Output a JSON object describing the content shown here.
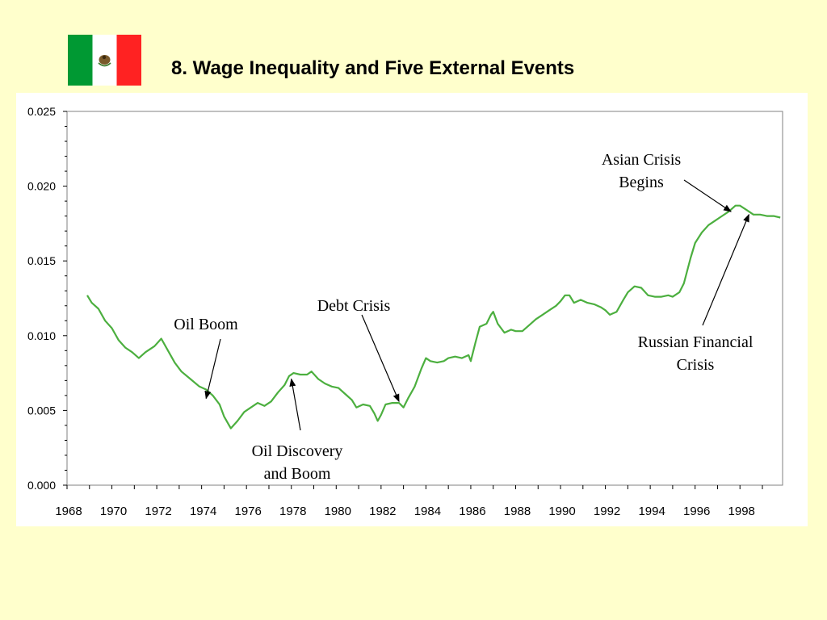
{
  "slide": {
    "title": "8.  Wage Inequality and Five External Events",
    "flag_colors": {
      "left": "#009933",
      "middle": "#FFFFFF",
      "right": "#FF2222",
      "emblem": "#7a5a2a"
    }
  },
  "chart_data": {
    "type": "line",
    "title": "",
    "xlabel": "",
    "ylabel": "",
    "xlim": [
      1968,
      1999.9
    ],
    "ylim": [
      0,
      0.025
    ],
    "y_ticks": [
      "0.000",
      "0.005",
      "0.010",
      "0.015",
      "0.020",
      "0.025"
    ],
    "y_tick_values": [
      0,
      0.005,
      0.01,
      0.015,
      0.02,
      0.025
    ],
    "x_ticks": [
      "1968",
      "1970",
      "1972",
      "1974",
      "1976",
      "1978",
      "1980",
      "1982",
      "1984",
      "1986",
      "1988",
      "1990",
      "1992",
      "1994",
      "1996",
      "1998"
    ],
    "x_tick_values": [
      1968,
      1970,
      1972,
      1974,
      1976,
      1978,
      1980,
      1982,
      1984,
      1986,
      1988,
      1990,
      1992,
      1994,
      1996,
      1998
    ],
    "grid": false,
    "line_color": "#4CAF3F",
    "series": [
      {
        "x": [
          1968.9,
          1969.1,
          1969.4,
          1969.7,
          1970.0,
          1970.3,
          1970.6,
          1970.9,
          1971.2,
          1971.5,
          1971.9,
          1972.2,
          1972.5,
          1972.8,
          1973.1,
          1973.5,
          1973.9,
          1974.2,
          1974.5,
          1974.8,
          1975.0,
          1975.3,
          1975.6,
          1975.9,
          1976.2,
          1976.5,
          1976.8,
          1977.1,
          1977.4,
          1977.7,
          1977.9,
          1978.1,
          1978.4,
          1978.7,
          1978.9,
          1979.2,
          1979.5,
          1979.8,
          1980.1,
          1980.4,
          1980.7,
          1980.9,
          1981.2,
          1981.5,
          1981.7,
          1981.85,
          1982.0,
          1982.2,
          1982.5,
          1982.8,
          1983.0,
          1983.2,
          1983.5,
          1983.8,
          1984.0,
          1984.2,
          1984.5,
          1984.8,
          1985.0,
          1985.3,
          1985.6,
          1985.9,
          1986.0,
          1986.2,
          1986.4,
          1986.7,
          1986.9,
          1987.0,
          1987.2,
          1987.5,
          1987.8,
          1988.0,
          1988.3,
          1988.6,
          1988.9,
          1989.2,
          1989.5,
          1989.8,
          1990.0,
          1990.2,
          1990.4,
          1990.6,
          1990.9,
          1991.2,
          1991.5,
          1991.8,
          1992.0,
          1992.2,
          1992.5,
          1992.8,
          1993.0,
          1993.3,
          1993.6,
          1993.9,
          1994.2,
          1994.5,
          1994.8,
          1995.0,
          1995.3,
          1995.5,
          1995.8,
          1996.0,
          1996.3,
          1996.6,
          1996.9,
          1997.2,
          1997.5,
          1997.8,
          1998.0,
          1998.3,
          1998.6,
          1998.9,
          1999.2,
          1999.5,
          1999.8
        ],
        "y": [
          0.0127,
          0.0122,
          0.0118,
          0.011,
          0.0105,
          0.0097,
          0.0092,
          0.0089,
          0.0085,
          0.0089,
          0.0093,
          0.0098,
          0.009,
          0.0082,
          0.0076,
          0.0071,
          0.0066,
          0.0064,
          0.006,
          0.0054,
          0.0046,
          0.0038,
          0.0043,
          0.0049,
          0.0052,
          0.0055,
          0.0053,
          0.0056,
          0.0062,
          0.0067,
          0.0073,
          0.0075,
          0.0074,
          0.0074,
          0.0076,
          0.0071,
          0.0068,
          0.0066,
          0.0065,
          0.0061,
          0.0057,
          0.0052,
          0.0054,
          0.0053,
          0.0048,
          0.0043,
          0.0047,
          0.0054,
          0.0055,
          0.0055,
          0.0052,
          0.0058,
          0.0066,
          0.0078,
          0.0085,
          0.0083,
          0.0082,
          0.0083,
          0.0085,
          0.0086,
          0.0085,
          0.0087,
          0.0083,
          0.0095,
          0.0106,
          0.0108,
          0.0114,
          0.0116,
          0.0108,
          0.0102,
          0.0104,
          0.0103,
          0.0103,
          0.0107,
          0.0111,
          0.0114,
          0.0117,
          0.012,
          0.0123,
          0.0127,
          0.0127,
          0.0122,
          0.0124,
          0.0122,
          0.0121,
          0.0119,
          0.0117,
          0.0114,
          0.0116,
          0.0124,
          0.0129,
          0.0133,
          0.0132,
          0.0127,
          0.0126,
          0.0126,
          0.0127,
          0.0126,
          0.0129,
          0.0135,
          0.0152,
          0.0162,
          0.0169,
          0.0174,
          0.0177,
          0.018,
          0.0183,
          0.0187,
          0.0187,
          0.0184,
          0.0181,
          0.0181,
          0.018,
          0.018,
          0.0179
        ]
      }
    ],
    "annotations": [
      {
        "lines": [
          "Oil Boom"
        ],
        "target": [
          1974.2,
          0.0058
        ]
      },
      {
        "lines": [
          "Oil Discovery",
          "and Boom"
        ],
        "target": [
          1978.0,
          0.0071
        ]
      },
      {
        "lines": [
          "Debt Crisis"
        ],
        "target": [
          1982.8,
          0.0056
        ]
      },
      {
        "lines": [
          "Asian Crisis",
          "Begins"
        ],
        "target": [
          1997.6,
          0.0183
        ]
      },
      {
        "lines": [
          "Russian Financial",
          "Crisis"
        ],
        "target": [
          1998.4,
          0.0181
        ]
      }
    ]
  }
}
